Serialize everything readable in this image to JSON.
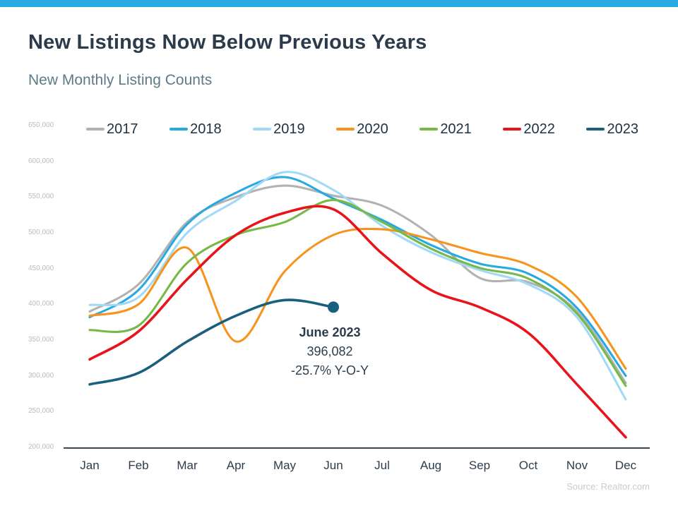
{
  "page": {
    "title": "New Listings Now Below Previous Years",
    "subtitle": "New Monthly Listing Counts",
    "source": "Source: Realtor.com",
    "accent_bar_color": "#29abe2"
  },
  "annotation": {
    "title": "June 2023",
    "value": "396,082",
    "yoy": "-25.7% Y-O-Y"
  },
  "chart_data": {
    "type": "line",
    "title": "New Monthly Listing Counts",
    "xlabel": "",
    "ylabel": "",
    "categories": [
      "Jan",
      "Feb",
      "Mar",
      "Apr",
      "May",
      "Jun",
      "Jul",
      "Aug",
      "Sep",
      "Oct",
      "Nov",
      "Dec"
    ],
    "y_ticks": [
      "650,000",
      "600,000",
      "550,000",
      "500,000",
      "450,000",
      "400,000",
      "350,000",
      "300,000",
      "250,000",
      "200,000"
    ],
    "ylim": [
      200000,
      650000
    ],
    "grid": false,
    "legend_position": "top",
    "series": [
      {
        "name": "2017",
        "color": "#b2b2b2",
        "values": [
          390000,
          428000,
          515000,
          550000,
          566000,
          552000,
          538000,
          497000,
          437000,
          431000,
          390000,
          290000
        ]
      },
      {
        "name": "2018",
        "color": "#29a9e1",
        "values": [
          382000,
          420000,
          512000,
          556000,
          578000,
          548000,
          518000,
          483000,
          457000,
          443000,
          395000,
          300000
        ]
      },
      {
        "name": "2019",
        "color": "#a2d9f7",
        "values": [
          399000,
          410000,
          500000,
          545000,
          585000,
          560000,
          510000,
          473000,
          448000,
          428000,
          382000,
          267000
        ]
      },
      {
        "name": "2020",
        "color": "#f7941e",
        "values": [
          384000,
          400000,
          479000,
          348000,
          446000,
          497000,
          505000,
          491000,
          472000,
          455000,
          410000,
          310000
        ]
      },
      {
        "name": "2021",
        "color": "#76b947",
        "values": [
          364000,
          370000,
          458000,
          497000,
          515000,
          546000,
          515000,
          478000,
          451000,
          436000,
          387000,
          286000
        ]
      },
      {
        "name": "2022",
        "color": "#e8131b",
        "values": [
          323000,
          362000,
          435000,
          497000,
          528000,
          533000,
          471000,
          420000,
          396000,
          360000,
          288000,
          214000
        ],
        "thick": true
      },
      {
        "name": "2023",
        "color": "#1a5f7e",
        "values": [
          288000,
          304000,
          348000,
          384000,
          406000,
          396082
        ],
        "thick": true,
        "end_marker": true
      }
    ]
  }
}
